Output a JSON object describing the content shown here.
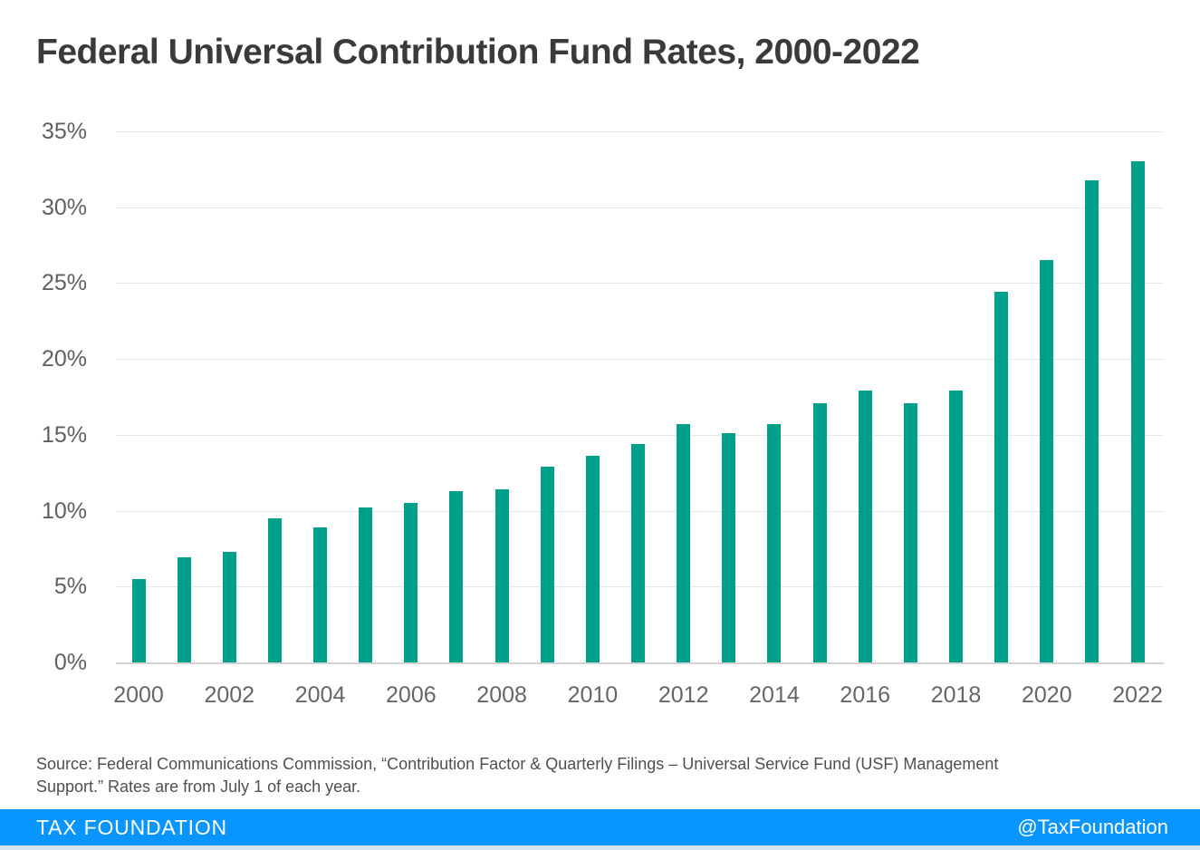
{
  "title": "Federal Universal Contribution Fund Rates, 2000-2022",
  "source": {
    "line1": "Source: Federal Communications Commission, “Contribution Factor & Quarterly Filings – Universal Service Fund (USF) Management",
    "line2": "Support.” Rates are from July 1 of each year."
  },
  "footer": {
    "brand": "TAX FOUNDATION",
    "handle": "@TaxFoundation"
  },
  "colors": {
    "bar": "#00A08B",
    "footer_bg": "#0995FF",
    "footer_strip": "#D5E3ED",
    "title_text": "#3A3A3A",
    "tick_text": "#5F5F5F",
    "gridline": "#E8E8E8",
    "axis_line": "#D2D2D2"
  },
  "chart_data": {
    "type": "bar",
    "title": "Federal Universal Contribution Fund Rates, 2000-2022",
    "xlabel": "",
    "ylabel": "",
    "unit": "%",
    "categories": [
      "2000",
      "2001",
      "2002",
      "2003",
      "2004",
      "2005",
      "2006",
      "2007",
      "2008",
      "2009",
      "2010",
      "2011",
      "2012",
      "2013",
      "2014",
      "2015",
      "2016",
      "2017",
      "2018",
      "2019",
      "2020",
      "2021",
      "2022"
    ],
    "values": [
      5.5,
      6.9,
      7.3,
      9.5,
      8.9,
      10.2,
      10.5,
      11.3,
      11.4,
      12.9,
      13.6,
      14.4,
      15.7,
      15.1,
      15.7,
      17.1,
      17.9,
      17.1,
      17.9,
      24.4,
      26.5,
      31.8,
      33.0
    ],
    "ylim": [
      0,
      35
    ],
    "ytick_step": 5,
    "ytick_labels": [
      "0%",
      "5%",
      "10%",
      "15%",
      "20%",
      "25%",
      "30%",
      "35%"
    ],
    "xtick_labels": [
      "2000",
      "2002",
      "2004",
      "2006",
      "2008",
      "2010",
      "2012",
      "2014",
      "2016",
      "2018",
      "2020",
      "2022"
    ],
    "xtick_every": 2,
    "grid": "horizontal",
    "legend": "none",
    "bar_color": "#00A08B"
  }
}
